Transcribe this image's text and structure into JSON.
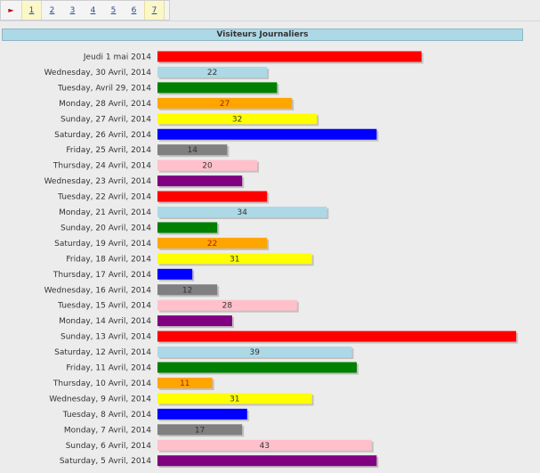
{
  "pager": {
    "arrow": "►",
    "pages": [
      "1",
      "2",
      "3",
      "4",
      "5",
      "6",
      "7"
    ],
    "highlighted": [
      "1",
      "7"
    ]
  },
  "chart_data": {
    "type": "bar",
    "orientation": "horizontal",
    "title": "Visiteurs Journaliers",
    "categories": [
      "Jeudi 1 mai 2014",
      "Wednesday, 30 Avril, 2014",
      "Tuesday, Avril 29, 2014",
      "Monday, 28 Avril, 2014",
      "Sunday, 27 Avril, 2014",
      "Saturday, 26 Avril, 2014",
      "Friday, 25 Avril, 2014",
      "Thursday, 24 Avril, 2014",
      "Wednesday, 23 Avril, 2014",
      "Tuesday, 22 Avril, 2014",
      "Monday, 21 Avril, 2014",
      "Sunday, 20 Avril, 2014",
      "Saturday, 19 Avril, 2014",
      "Friday, 18 Avril, 2014",
      "Thursday, 17 Avril, 2014",
      "Wednesday, 16 Avril, 2014",
      "Tuesday, 15 Avril, 2014",
      "Monday, 14 Avril, 2014",
      "Sunday, 13 Avril, 2014",
      "Saturday, 12 Avril, 2014",
      "Friday, 11 Avril, 2014",
      "Thursday, 10 Avril, 2014",
      "Wednesday, 9 Avril, 2014",
      "Tuesday, 8 Avril, 2014",
      "Monday, 7 Avril, 2014",
      "Sunday, 6 Avril, 2014",
      "Saturday, 5 Avril, 2014"
    ],
    "values": [
      53,
      22,
      24,
      27,
      32,
      44,
      14,
      20,
      17,
      22,
      34,
      12,
      22,
      31,
      7,
      12,
      28,
      15,
      72,
      39,
      40,
      11,
      31,
      18,
      17,
      43,
      44
    ],
    "value_labels": [
      "",
      "22",
      "",
      "27",
      "32",
      "",
      "14",
      "20",
      "",
      "",
      "34",
      "",
      "22",
      "31",
      "",
      "12",
      "28",
      "",
      "",
      "39",
      "",
      "11",
      "31",
      "",
      "17",
      "43",
      ""
    ],
    "colors": [
      "#ff0000",
      "#add8e6",
      "#008000",
      "#ffa500",
      "#ffff00",
      "#0000ff",
      "#808080",
      "#ffc0cb",
      "#800080"
    ],
    "label_colors": {
      "#ff0000": "#cc0000",
      "#add8e6": "#333333",
      "#008000": "#004400",
      "#ffa500": "#aa2200",
      "#ffff00": "#333333",
      "#0000ff": "#000099",
      "#808080": "#333333",
      "#ffc0cb": "#333333",
      "#800080": "#333333"
    },
    "grid": false,
    "legend": "none"
  }
}
